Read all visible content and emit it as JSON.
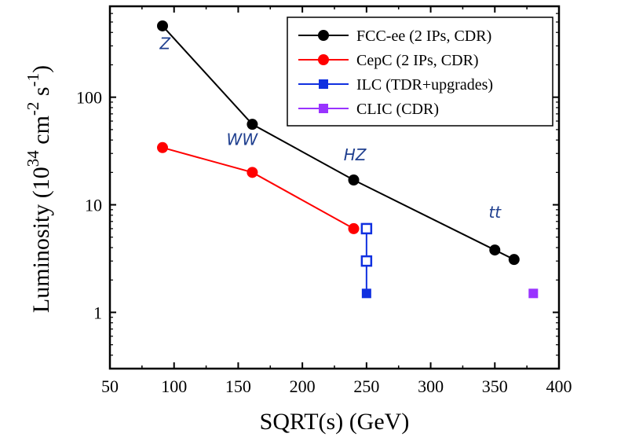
{
  "chart_data": {
    "type": "line",
    "xlabel": "SQRT(s) (GeV)",
    "ylabel": {
      "main": "Luminosity (10",
      "sup1": "34",
      "mid": " cm",
      "sup2": "-2",
      "mid2": " s",
      "sup3": "-1",
      "end": ")"
    },
    "xlim": [
      50,
      400
    ],
    "ylim": [
      0.3,
      700
    ],
    "yscale": "log",
    "xticks": [
      50,
      100,
      150,
      200,
      250,
      300,
      350,
      400
    ],
    "yticks": [
      1,
      10,
      100
    ],
    "yticklabels": [
      "1",
      "10",
      "100"
    ],
    "legend_position": "top-right",
    "series": [
      {
        "name": "FCC-ee (2 IPs, CDR)",
        "color": "#000000",
        "marker": "circle",
        "x": [
          91,
          161,
          240,
          350,
          365
        ],
        "y": [
          460,
          56,
          17,
          3.8,
          3.1
        ]
      },
      {
        "name": "CepC (2 IPs, CDR)",
        "color": "#ff0000",
        "marker": "circle",
        "x": [
          91,
          161,
          240
        ],
        "y": [
          34,
          20,
          6
        ]
      },
      {
        "name": "ILC (TDR+upgrades)",
        "color": "#1030e0",
        "marker": "square",
        "x": [
          250,
          250,
          250
        ],
        "y": [
          1.5,
          3,
          6
        ],
        "hollow": [
          false,
          true,
          true
        ]
      },
      {
        "name": "CLIC (CDR)",
        "color": "#9933ff",
        "marker": "square",
        "x": [
          380
        ],
        "y": [
          1.5
        ]
      }
    ],
    "annotations": [
      {
        "text": "Z",
        "x": 93,
        "y": 280
      },
      {
        "text": "WW",
        "x": 153,
        "y": 36
      },
      {
        "text": "HZ",
        "x": 241,
        "y": 26
      },
      {
        "text": "tt",
        "x": 350,
        "y": 7.6
      }
    ]
  }
}
